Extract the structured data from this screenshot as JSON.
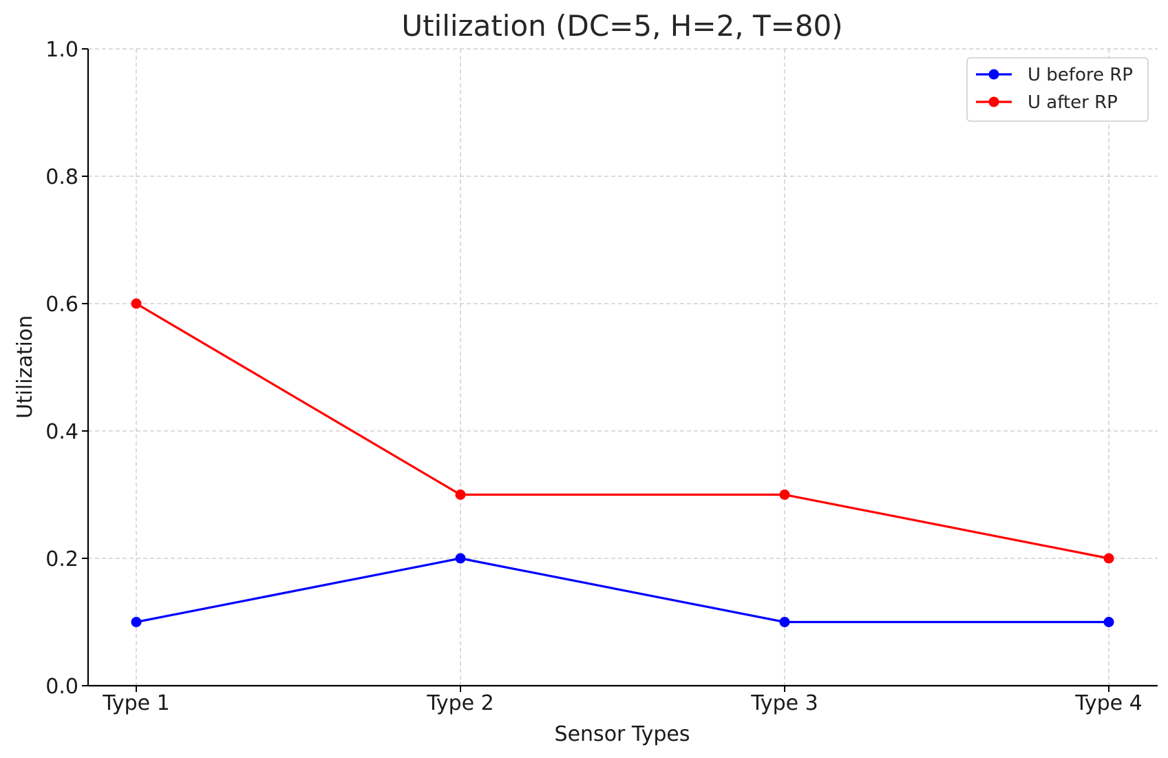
{
  "chart_data": {
    "type": "line",
    "title": "Utilization (DC=5, H=2, T=80)",
    "xlabel": "Sensor Types",
    "ylabel": "Utilization",
    "categories": [
      "Type 1",
      "Type 2",
      "Type 3",
      "Type 4"
    ],
    "ylim": [
      0.0,
      1.0
    ],
    "yticks": [
      "0.0",
      "0.2",
      "0.4",
      "0.6",
      "0.8",
      "1.0"
    ],
    "grid": true,
    "legend_position": "top-right",
    "series": [
      {
        "name": "U before RP",
        "color": "#0000ff",
        "values": [
          0.1,
          0.2,
          0.1,
          0.1
        ]
      },
      {
        "name": "U after RP",
        "color": "#ff0000",
        "values": [
          0.6,
          0.3,
          0.3,
          0.2
        ]
      }
    ]
  }
}
